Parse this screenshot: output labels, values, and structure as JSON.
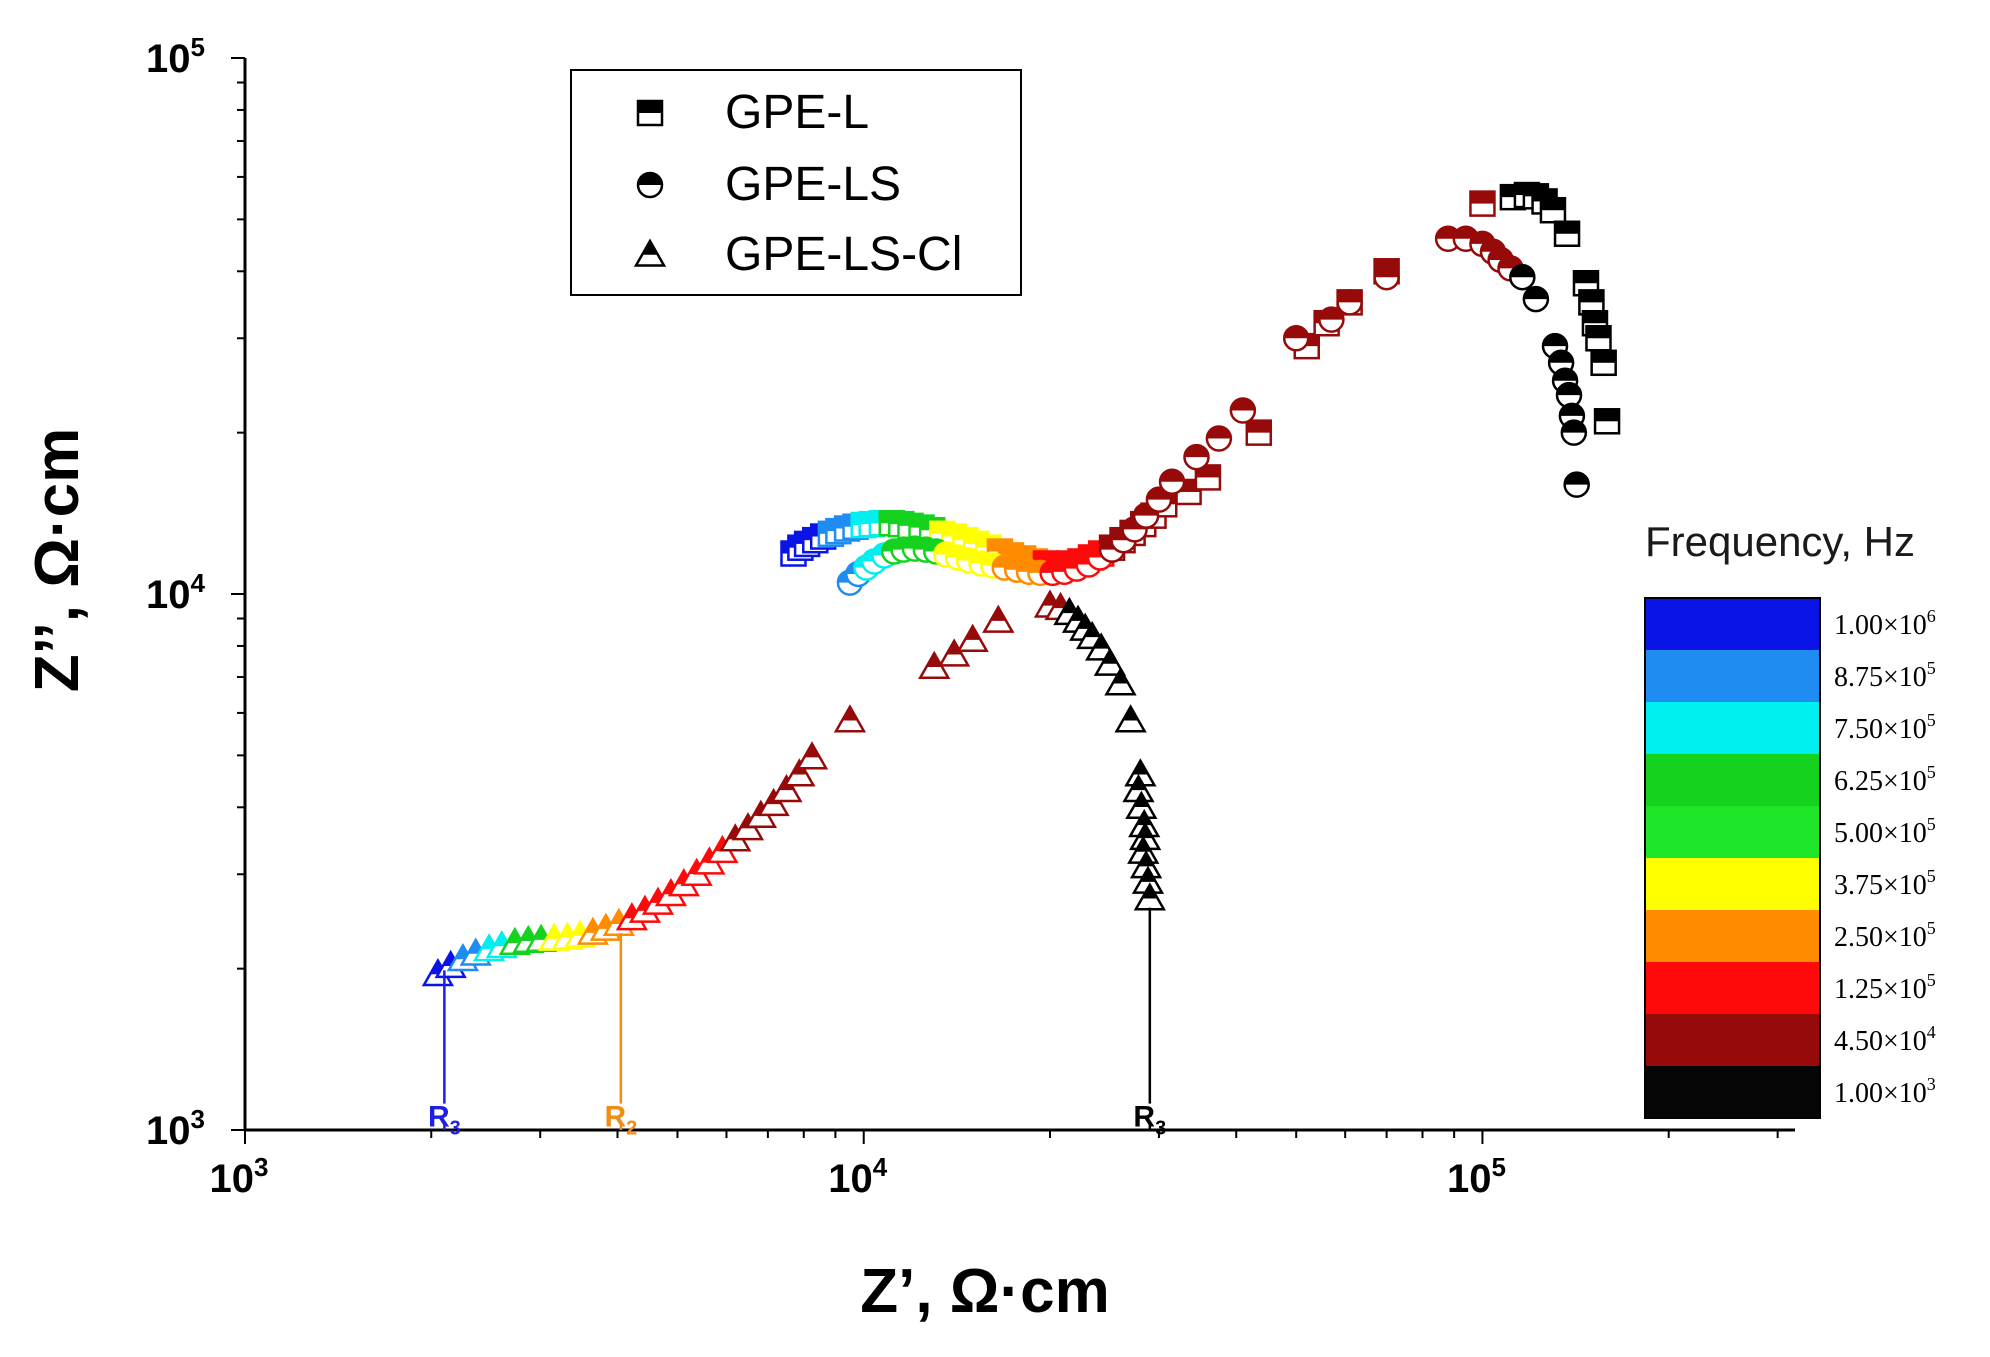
{
  "chart_data": {
    "type": "scatter",
    "title": "",
    "xlabel": "Z’, Ω·cm",
    "ylabel": "Z’’, Ω·cm",
    "xscale": "log",
    "yscale": "log",
    "xlim": [
      1000,
      320000
    ],
    "ylim": [
      1000,
      100000
    ],
    "x_ticks": [
      {
        "value": 1000,
        "base": "10",
        "exp": "3"
      },
      {
        "value": 10000,
        "base": "10",
        "exp": "4"
      },
      {
        "value": 100000,
        "base": "10",
        "exp": "5"
      }
    ],
    "y_ticks": [
      {
        "value": 1000,
        "base": "10",
        "exp": "3"
      },
      {
        "value": 10000,
        "base": "10",
        "exp": "4"
      },
      {
        "value": 100000,
        "base": "10",
        "exp": "5"
      }
    ],
    "legend": {
      "position": "top-left",
      "entries": [
        {
          "label": "GPE-L",
          "marker": "square"
        },
        {
          "label": "GPE-LS",
          "marker": "circle"
        },
        {
          "label": "GPE-LS-Cl",
          "marker": "triangle"
        }
      ]
    },
    "colorbar": {
      "title": "Frequency, Hz",
      "levels": [
        {
          "label": "1.00×10",
          "exp": "6",
          "color": "#0a14e6"
        },
        {
          "label": "8.75×10",
          "exp": "5",
          "color": "#1e8cf0"
        },
        {
          "label": "7.50×10",
          "exp": "5",
          "color": "#00f0f0"
        },
        {
          "label": "6.25×10",
          "exp": "5",
          "color": "#14d21e"
        },
        {
          "label": "5.00×10",
          "exp": "5",
          "color": "#1ee628"
        },
        {
          "label": "3.75×10",
          "exp": "5",
          "color": "#ffff00"
        },
        {
          "label": "2.50×10",
          "exp": "5",
          "color": "#ff8c00"
        },
        {
          "label": "1.25×10",
          "exp": "5",
          "color": "#ff0a0a"
        },
        {
          "label": "4.50×10",
          "exp": "4",
          "color": "#960a0a"
        },
        {
          "label": "1.00×10",
          "exp": "3",
          "color": "#050505"
        }
      ]
    },
    "annotations": [
      {
        "label": "R",
        "sub": "3",
        "x": 2100,
        "color": "#1e1ee6"
      },
      {
        "label": "R",
        "sub": "2",
        "x": 4050,
        "color": "#f08c14"
      },
      {
        "label": "R",
        "sub": "3",
        "x": 29000,
        "color": "#000000"
      }
    ],
    "series": [
      {
        "name": "GPE-L",
        "marker": "square",
        "points": [
          [
            7700,
            11900
          ],
          [
            7900,
            12200
          ],
          [
            8100,
            12400
          ],
          [
            8350,
            12600
          ],
          [
            8600,
            12800
          ],
          [
            8850,
            12950
          ],
          [
            9100,
            13100
          ],
          [
            9400,
            13250
          ],
          [
            9700,
            13350
          ],
          [
            10000,
            13450
          ],
          [
            10300,
            13500
          ],
          [
            10700,
            13550
          ],
          [
            11100,
            13550
          ],
          [
            11500,
            13500
          ],
          [
            11900,
            13400
          ],
          [
            12400,
            13300
          ],
          [
            12900,
            13150
          ],
          [
            13400,
            12950
          ],
          [
            14000,
            12800
          ],
          [
            14600,
            12600
          ],
          [
            15200,
            12400
          ],
          [
            15900,
            12200
          ],
          [
            16600,
            12000
          ],
          [
            17300,
            11800
          ],
          [
            18100,
            11650
          ],
          [
            18900,
            11500
          ],
          [
            19700,
            11400
          ],
          [
            20600,
            11350
          ],
          [
            21500,
            11400
          ],
          [
            22400,
            11500
          ],
          [
            23300,
            11700
          ],
          [
            24200,
            11900
          ],
          [
            25200,
            12200
          ],
          [
            26200,
            12600
          ],
          [
            27200,
            13000
          ],
          [
            28300,
            13500
          ],
          [
            29400,
            14000
          ],
          [
            30600,
            14700
          ],
          [
            33500,
            15500
          ],
          [
            36000,
            16500
          ],
          [
            43500,
            20000
          ],
          [
            52000,
            29000
          ],
          [
            56000,
            32000
          ],
          [
            61000,
            35000
          ],
          [
            70000,
            40000
          ],
          [
            100000,
            53500
          ],
          [
            112000,
            55000
          ],
          [
            118000,
            55500
          ],
          [
            122000,
            55200
          ],
          [
            126000,
            54000
          ],
          [
            130000,
            52000
          ],
          [
            137000,
            47000
          ],
          [
            147000,
            38000
          ],
          [
            150000,
            35000
          ],
          [
            152000,
            32000
          ],
          [
            154000,
            30000
          ],
          [
            157000,
            27000
          ],
          [
            159000,
            21000
          ]
        ]
      },
      {
        "name": "GPE-LS",
        "marker": "circle",
        "points": [
          [
            9500,
            10500
          ],
          [
            9800,
            10900
          ],
          [
            10100,
            11200
          ],
          [
            10400,
            11500
          ],
          [
            10800,
            11800
          ],
          [
            11200,
            12000
          ],
          [
            11600,
            12100
          ],
          [
            12100,
            12150
          ],
          [
            12600,
            12100
          ],
          [
            13100,
            12000
          ],
          [
            13600,
            11850
          ],
          [
            14200,
            11700
          ],
          [
            14800,
            11550
          ],
          [
            15500,
            11400
          ],
          [
            16200,
            11300
          ],
          [
            16900,
            11200
          ],
          [
            17700,
            11100
          ],
          [
            18500,
            11000
          ],
          [
            19300,
            10950
          ],
          [
            20200,
            10950
          ],
          [
            21100,
            11000
          ],
          [
            22100,
            11150
          ],
          [
            23100,
            11350
          ],
          [
            24100,
            11700
          ],
          [
            25200,
            12100
          ],
          [
            26300,
            12600
          ],
          [
            27400,
            13200
          ],
          [
            28600,
            14000
          ],
          [
            30000,
            15000
          ],
          [
            31500,
            16200
          ],
          [
            34500,
            18000
          ],
          [
            37500,
            19500
          ],
          [
            41000,
            22000
          ],
          [
            50000,
            30000
          ],
          [
            57000,
            32500
          ],
          [
            61000,
            35000
          ],
          [
            70000,
            39000
          ],
          [
            88000,
            46000
          ],
          [
            94000,
            46000
          ],
          [
            100000,
            45000
          ],
          [
            104000,
            43500
          ],
          [
            107000,
            42000
          ],
          [
            111000,
            40500
          ],
          [
            116000,
            39000
          ],
          [
            122000,
            35500
          ],
          [
            131000,
            29000
          ],
          [
            134000,
            27000
          ],
          [
            136000,
            25000
          ],
          [
            138000,
            23500
          ],
          [
            139500,
            21500
          ],
          [
            140500,
            20000
          ],
          [
            142000,
            16000
          ]
        ]
      },
      {
        "name": "GPE-LS-Cl",
        "marker": "triangle",
        "points": [
          [
            2050,
            1950
          ],
          [
            2150,
            2020
          ],
          [
            2250,
            2080
          ],
          [
            2360,
            2130
          ],
          [
            2480,
            2170
          ],
          [
            2600,
            2200
          ],
          [
            2730,
            2230
          ],
          [
            2870,
            2250
          ],
          [
            3010,
            2260
          ],
          [
            3160,
            2270
          ],
          [
            3320,
            2280
          ],
          [
            3480,
            2300
          ],
          [
            3650,
            2330
          ],
          [
            3830,
            2370
          ],
          [
            4020,
            2420
          ],
          [
            4220,
            2480
          ],
          [
            4430,
            2560
          ],
          [
            4650,
            2650
          ],
          [
            4880,
            2750
          ],
          [
            5120,
            2870
          ],
          [
            5370,
            3000
          ],
          [
            5630,
            3150
          ],
          [
            5910,
            3310
          ],
          [
            6200,
            3480
          ],
          [
            6500,
            3650
          ],
          [
            6820,
            3850
          ],
          [
            7150,
            4050
          ],
          [
            7500,
            4300
          ],
          [
            7870,
            4600
          ],
          [
            8250,
            4950
          ],
          [
            9500,
            5800
          ],
          [
            13000,
            7300
          ],
          [
            14000,
            7700
          ],
          [
            15000,
            8200
          ],
          [
            16500,
            8900
          ],
          [
            20000,
            9500
          ],
          [
            20800,
            9400
          ],
          [
            21500,
            9200
          ],
          [
            22200,
            8900
          ],
          [
            22800,
            8600
          ],
          [
            23400,
            8300
          ],
          [
            24200,
            7900
          ],
          [
            25000,
            7400
          ],
          [
            26000,
            6800
          ],
          [
            27000,
            5800
          ],
          [
            28000,
            4600
          ],
          [
            27800,
            4300
          ],
          [
            28100,
            4000
          ],
          [
            28400,
            3700
          ],
          [
            28500,
            3500
          ],
          [
            28300,
            3300
          ],
          [
            28600,
            3100
          ],
          [
            28800,
            2900
          ],
          [
            29000,
            2700
          ]
        ]
      }
    ]
  }
}
